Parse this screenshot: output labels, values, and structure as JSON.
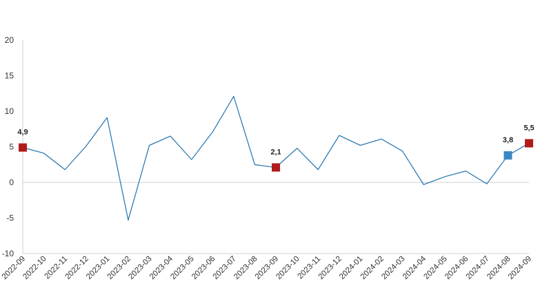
{
  "chart_data": {
    "type": "line",
    "title": "",
    "xlabel": "",
    "ylabel": "",
    "ylim": [
      -10,
      20
    ],
    "yticks": [
      -10,
      -5,
      0,
      5,
      10,
      15,
      20
    ],
    "grid": false,
    "x": [
      "2022-09",
      "2022-10",
      "2022-11",
      "2022-12",
      "2023-01",
      "2023-02",
      "2023-03",
      "2023-04",
      "2023-05",
      "2023-06",
      "2023-07",
      "2023-08",
      "2023-09",
      "2023-10",
      "2023-11",
      "2023-12",
      "2024-01",
      "2024-02",
      "2024-03",
      "2024-04",
      "2024-05",
      "2024-06",
      "2024-07",
      "2024-08",
      "2024-09"
    ],
    "series": [
      {
        "values": [
          4.9,
          4.1,
          1.8,
          5.1,
          9.1,
          -5.3,
          5.2,
          6.5,
          3.2,
          7.1,
          12.1,
          2.5,
          2.1,
          4.8,
          1.8,
          6.6,
          5.2,
          6.1,
          4.4,
          -0.3,
          0.8,
          1.6,
          -0.2,
          3.8,
          5.5
        ],
        "color": "#2e7bb4"
      }
    ],
    "highlighted_points": [
      {
        "index": 0,
        "label": "4,9",
        "color": "#b31b1b"
      },
      {
        "index": 12,
        "label": "2,1",
        "color": "#b31b1b"
      },
      {
        "index": 23,
        "label": "3,8",
        "color": "#3a86c4"
      },
      {
        "index": 24,
        "label": "5,5",
        "color": "#b31b1b"
      }
    ],
    "axis_color": "#d0d0d0"
  }
}
